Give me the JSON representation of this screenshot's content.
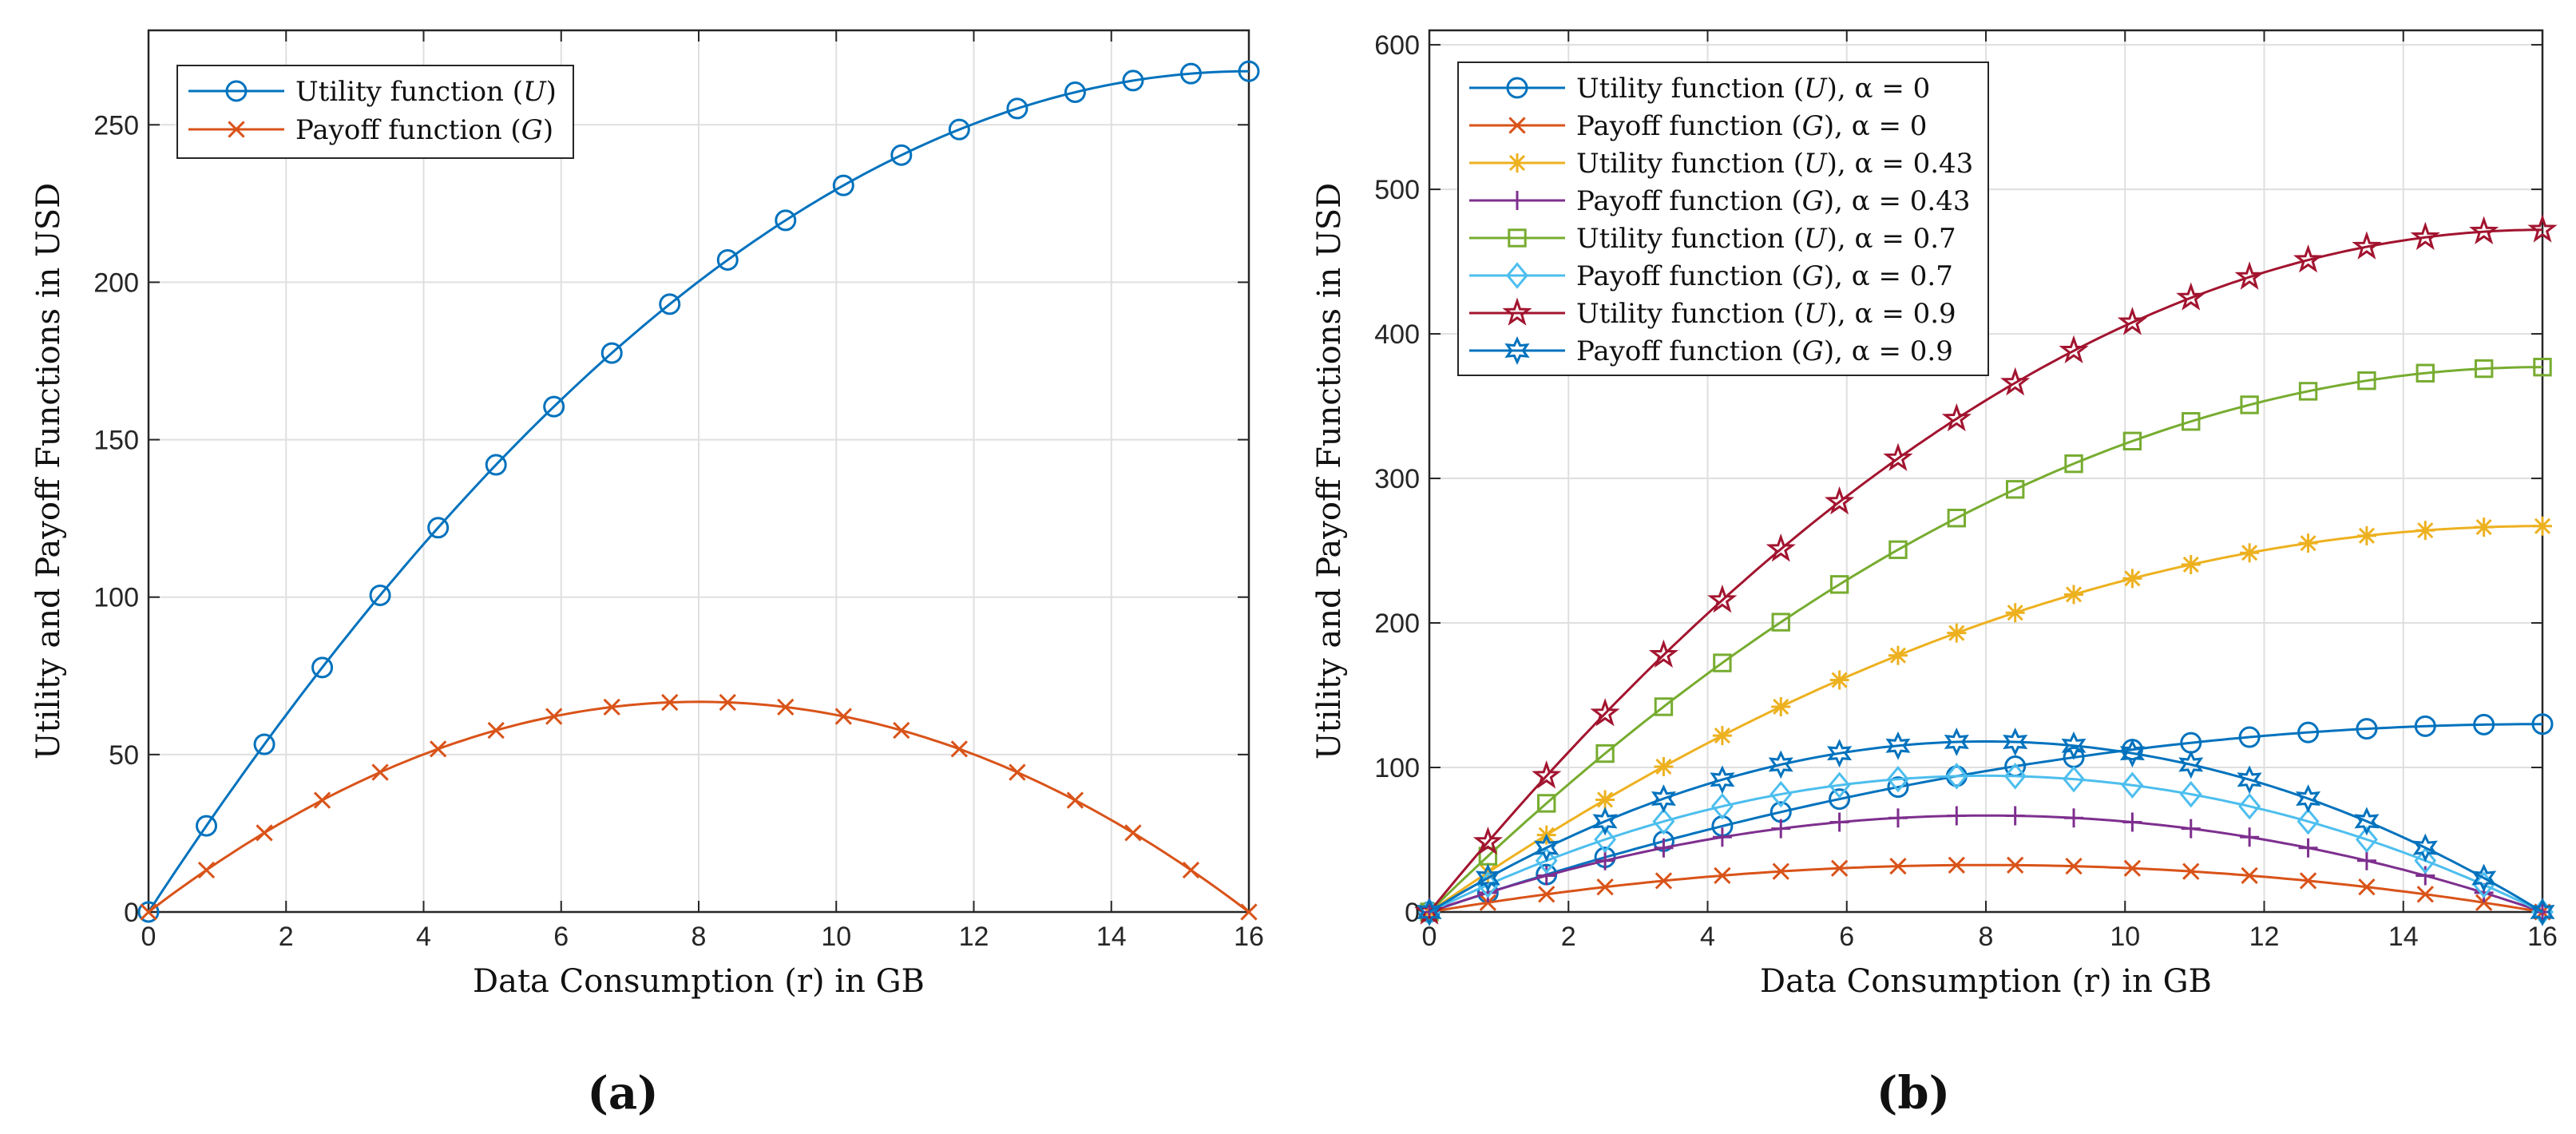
{
  "panels": [
    {
      "id": "a",
      "caption": "(a)",
      "chart_data": {
        "type": "line",
        "xlabel": "Data Consumption (r) in GB",
        "ylabel": "Utility and Payoff Functions in USD",
        "xlim": [
          0,
          16
        ],
        "ylim": [
          0,
          280
        ],
        "xticks": [
          0,
          2,
          4,
          6,
          8,
          10,
          12,
          14,
          16
        ],
        "yticks": [
          0,
          50,
          100,
          150,
          200,
          250
        ],
        "grid": true,
        "legend_position": "top-left",
        "x": [
          0,
          0.842,
          1.684,
          2.526,
          3.368,
          4.211,
          5.053,
          5.895,
          6.737,
          7.579,
          8.421,
          9.263,
          10.105,
          10.947,
          11.789,
          12.632,
          13.474,
          14.316,
          15.158,
          16
        ],
        "series": [
          {
            "name": "Utility function (U)",
            "name_pre": "Utility function (",
            "name_var": "U",
            "name_post": ")",
            "color": "#0072BD",
            "marker": "circle",
            "alpha": 1.0,
            "uMax": 267
          },
          {
            "name": "Payoff function (G)",
            "name_pre": "Payoff function (",
            "name_var": "G",
            "name_post": ")",
            "color": "#D95319",
            "marker": "x",
            "alpha": 1.0,
            "uMax": 267,
            "payoff": true
          }
        ]
      }
    },
    {
      "id": "b",
      "caption": "(b)",
      "chart_data": {
        "type": "line",
        "xlabel": "Data Consumption (r) in GB",
        "ylabel": "Utility and Payoff Functions in USD",
        "xlim": [
          0,
          16
        ],
        "ylim": [
          0,
          610
        ],
        "xticks": [
          0,
          2,
          4,
          6,
          8,
          10,
          12,
          14,
          16
        ],
        "yticks": [
          0,
          100,
          200,
          300,
          400,
          500,
          600
        ],
        "grid": true,
        "legend_position": "top-left",
        "x": [
          0,
          0.842,
          1.684,
          2.526,
          3.368,
          4.211,
          5.053,
          5.895,
          6.737,
          7.579,
          8.421,
          9.263,
          10.105,
          10.947,
          11.789,
          12.632,
          13.474,
          14.316,
          15.158,
          16
        ],
        "series": [
          {
            "name": "Utility function (U), α = 0",
            "name_pre": "Utility function (",
            "name_var": "U",
            "name_post": "), α = 0",
            "color": "#0072BD",
            "marker": "circle",
            "uMax": 130
          },
          {
            "name": "Payoff function (G), α = 0",
            "name_pre": "Payoff function (",
            "name_var": "G",
            "name_post": "), α = 0",
            "color": "#D95319",
            "marker": "x",
            "uMax": 130,
            "payoff": true
          },
          {
            "name": "Utility function (U), α = 0.43",
            "name_pre": "Utility function (",
            "name_var": "U",
            "name_post": "), α = 0.43",
            "color": "#EDB120",
            "marker": "asterisk",
            "uMax": 267
          },
          {
            "name": "Payoff function (G), α = 0.43",
            "name_pre": "Payoff function (",
            "name_var": "G",
            "name_post": "), α = 0.43",
            "color": "#7E2F8E",
            "marker": "plus",
            "uMax": 267,
            "payoff": true
          },
          {
            "name": "Utility function (U), α = 0.7",
            "name_pre": "Utility function (",
            "name_var": "U",
            "name_post": "), α = 0.7",
            "color": "#77AC30",
            "marker": "square",
            "uMax": 377
          },
          {
            "name": "Payoff function (G), α = 0.7",
            "name_pre": "Payoff function (",
            "name_var": "G",
            "name_post": "), α = 0.7",
            "color": "#4DBEEE",
            "marker": "diamond",
            "uMax": 377,
            "payoff": true
          },
          {
            "name": "Utility function (U), α = 0.9",
            "name_pre": "Utility function (",
            "name_var": "U",
            "name_post": "), α = 0.9",
            "color": "#A2142F",
            "marker": "pentagram",
            "uMax": 472
          },
          {
            "name": "Payoff function (G), α = 0.9",
            "name_pre": "Payoff function (",
            "name_var": "G",
            "name_post": "), α = 0.9",
            "color": "#0072BD",
            "marker": "hexagram",
            "uMax": 472,
            "payoff": true
          }
        ]
      }
    }
  ]
}
